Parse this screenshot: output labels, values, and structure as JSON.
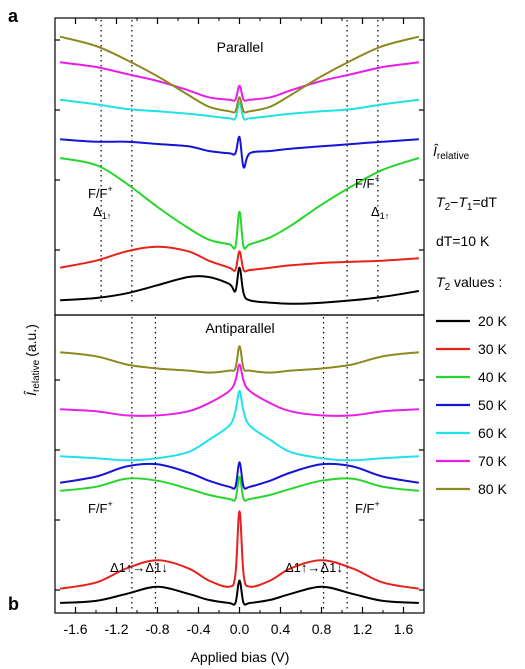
{
  "panels": {
    "a": {
      "label": "a",
      "title": "Parallel"
    },
    "b": {
      "label": "b",
      "title": "Antiparallel"
    }
  },
  "axis": {
    "xlabel": "Applied bias (V)",
    "ylabel_symbol": "Î",
    "ylabel_sub": "relative",
    "ylabel_unit": "(a.u.)"
  },
  "side_text": {
    "i_symbol": "Î",
    "i_sub": "relative",
    "t2_label": "T",
    "t2_sub": "2",
    "t2_minus": "−",
    "t1_label": "T",
    "t1_sub": "1",
    "eq_dt": "=dT",
    "dt_value": "dT=10 K",
    "t2_values_label": "T",
    "t2_values_sub": "2",
    "t2_values_suffix": " values :"
  },
  "annotations": {
    "ff_left_a": "F/F",
    "ff_right_a": "F/F",
    "ff_left_b": "F/F",
    "ff_right_b": "F/F",
    "ff_sup": "+",
    "delta_left": "Δ",
    "delta_right": "Δ",
    "delta_sub": "1↑",
    "trans_left": "Δ1↑→Δ1↓",
    "trans_right": "Δ1↑→Δ1↓"
  },
  "chart_data": [
    {
      "type": "line",
      "panel": "a",
      "title": "Parallel",
      "xlabel": "Applied bias (V)",
      "ylabel": "Îrelative (a.u.)",
      "xlim": [
        -1.8,
        1.8
      ],
      "x": [
        -1.75,
        -1.4,
        -1.1,
        -0.8,
        -0.5,
        -0.3,
        -0.1,
        -0.04,
        0.0,
        0.04,
        0.1,
        0.3,
        0.5,
        0.8,
        1.1,
        1.4,
        1.75
      ],
      "reference_lines": [
        -1.35,
        -1.05,
        1.05,
        1.35
      ],
      "series": [
        {
          "name": "20 K",
          "color": "#000000",
          "values": [
            0.2,
            0.3,
            0.5,
            0.85,
            1.2,
            1.2,
            0.9,
            0.6,
            1.6,
            0.5,
            0.2,
            0.1,
            0.05,
            0.1,
            0.2,
            0.35,
            0.6
          ]
        },
        {
          "name": "30 K",
          "color": "#e8211b",
          "values": [
            1.6,
            1.9,
            2.3,
            2.5,
            2.3,
            1.9,
            1.6,
            1.5,
            2.3,
            1.5,
            1.5,
            1.6,
            1.7,
            1.8,
            1.85,
            1.9,
            2.0
          ]
        },
        {
          "name": "40 K",
          "color": "#27d62a",
          "values": [
            6.3,
            6.0,
            5.2,
            4.2,
            3.3,
            2.8,
            2.6,
            2.5,
            4.0,
            2.5,
            2.6,
            2.9,
            3.4,
            4.3,
            5.1,
            5.8,
            6.3
          ]
        },
        {
          "name": "50 K",
          "color": "#1414d8",
          "values": [
            7.1,
            7.0,
            7.0,
            6.9,
            6.8,
            6.6,
            6.5,
            6.5,
            7.2,
            5.9,
            6.5,
            6.6,
            6.7,
            6.8,
            6.9,
            7.0,
            7.1
          ]
        },
        {
          "name": "60 K",
          "color": "#1fe2e8",
          "values": [
            8.8,
            8.6,
            8.4,
            8.3,
            8.2,
            8.1,
            8.0,
            8.0,
            8.7,
            8.0,
            8.0,
            8.1,
            8.2,
            8.3,
            8.4,
            8.6,
            8.8
          ]
        },
        {
          "name": "70 K",
          "color": "#e81de8",
          "values": [
            10.4,
            10.2,
            9.9,
            9.6,
            9.2,
            8.9,
            8.8,
            8.8,
            9.4,
            8.8,
            8.8,
            8.9,
            9.2,
            9.6,
            9.9,
            10.2,
            10.4
          ]
        },
        {
          "name": "80 K",
          "color": "#8c8a1e",
          "values": [
            11.5,
            11.1,
            10.5,
            9.8,
            9.0,
            8.5,
            8.3,
            8.3,
            8.9,
            8.3,
            8.3,
            8.5,
            9.0,
            9.8,
            10.5,
            11.1,
            11.5
          ]
        }
      ]
    },
    {
      "type": "line",
      "panel": "b",
      "title": "Antiparallel",
      "xlabel": "Applied bias (V)",
      "ylabel": "Îrelative (a.u.)",
      "xlim": [
        -1.8,
        1.8
      ],
      "x": [
        -1.75,
        -1.4,
        -1.1,
        -0.8,
        -0.5,
        -0.3,
        -0.1,
        -0.04,
        0.0,
        0.04,
        0.1,
        0.3,
        0.5,
        0.8,
        1.1,
        1.4,
        1.75
      ],
      "reference_lines": [
        -1.05,
        -0.82,
        0.82,
        1.05
      ],
      "series": [
        {
          "name": "20 K",
          "color": "#000000",
          "values": [
            0.1,
            0.2,
            0.55,
            0.9,
            0.55,
            0.25,
            0.1,
            0.1,
            1.2,
            0.1,
            0.1,
            0.25,
            0.55,
            0.9,
            0.55,
            0.2,
            0.1
          ]
        },
        {
          "name": "30 K",
          "color": "#e8211b",
          "values": [
            0.8,
            1.1,
            1.8,
            2.2,
            1.8,
            1.2,
            0.9,
            1.5,
            4.6,
            1.5,
            0.9,
            1.2,
            1.8,
            2.2,
            1.8,
            1.1,
            0.8
          ]
        },
        {
          "name": "40 K",
          "color": "#27d62a",
          "values": [
            5.6,
            5.8,
            6.2,
            6.1,
            5.7,
            5.4,
            5.2,
            5.2,
            6.3,
            5.2,
            5.2,
            5.4,
            5.7,
            6.1,
            6.2,
            5.8,
            5.6
          ]
        },
        {
          "name": "50 K",
          "color": "#1414d8",
          "values": [
            6.0,
            6.3,
            6.8,
            6.9,
            6.5,
            6.1,
            5.8,
            5.8,
            7.0,
            5.8,
            5.8,
            6.1,
            6.5,
            6.9,
            6.8,
            6.3,
            6.0
          ]
        },
        {
          "name": "60 K",
          "color": "#1fe2e8",
          "values": [
            7.3,
            7.2,
            7.1,
            7.2,
            7.5,
            8.1,
            8.8,
            9.5,
            10.5,
            9.5,
            8.8,
            8.1,
            7.5,
            7.2,
            7.1,
            7.2,
            7.3
          ]
        },
        {
          "name": "70 K",
          "color": "#e81de8",
          "values": [
            9.6,
            9.5,
            9.3,
            9.3,
            9.5,
            9.9,
            10.5,
            11.0,
            11.8,
            11.0,
            10.5,
            9.9,
            9.5,
            9.3,
            9.3,
            9.5,
            9.6
          ]
        },
        {
          "name": "80 K",
          "color": "#8c8a1e",
          "values": [
            12.4,
            12.2,
            11.8,
            11.6,
            11.5,
            11.4,
            11.5,
            11.6,
            12.7,
            11.6,
            11.5,
            11.4,
            11.5,
            11.6,
            11.8,
            12.2,
            12.4
          ]
        }
      ]
    }
  ],
  "x_ticks": [
    "-1.6",
    "-1.2",
    "-0.8",
    "-0.4",
    "0.0",
    "0.4",
    "0.8",
    "1.2",
    "1.6"
  ],
  "x_tick_values": [
    -1.6,
    -1.2,
    -0.8,
    -0.4,
    0.0,
    0.4,
    0.8,
    1.2,
    1.6
  ],
  "legend": [
    {
      "label": "20 K",
      "color": "#000000"
    },
    {
      "label": "30 K",
      "color": "#e8211b"
    },
    {
      "label": "40 K",
      "color": "#27d62a"
    },
    {
      "label": "50 K",
      "color": "#1414d8"
    },
    {
      "label": "60 K",
      "color": "#1fe2e8"
    },
    {
      "label": "70 K",
      "color": "#e81de8"
    },
    {
      "label": "80 K",
      "color": "#8c8a1e"
    }
  ]
}
